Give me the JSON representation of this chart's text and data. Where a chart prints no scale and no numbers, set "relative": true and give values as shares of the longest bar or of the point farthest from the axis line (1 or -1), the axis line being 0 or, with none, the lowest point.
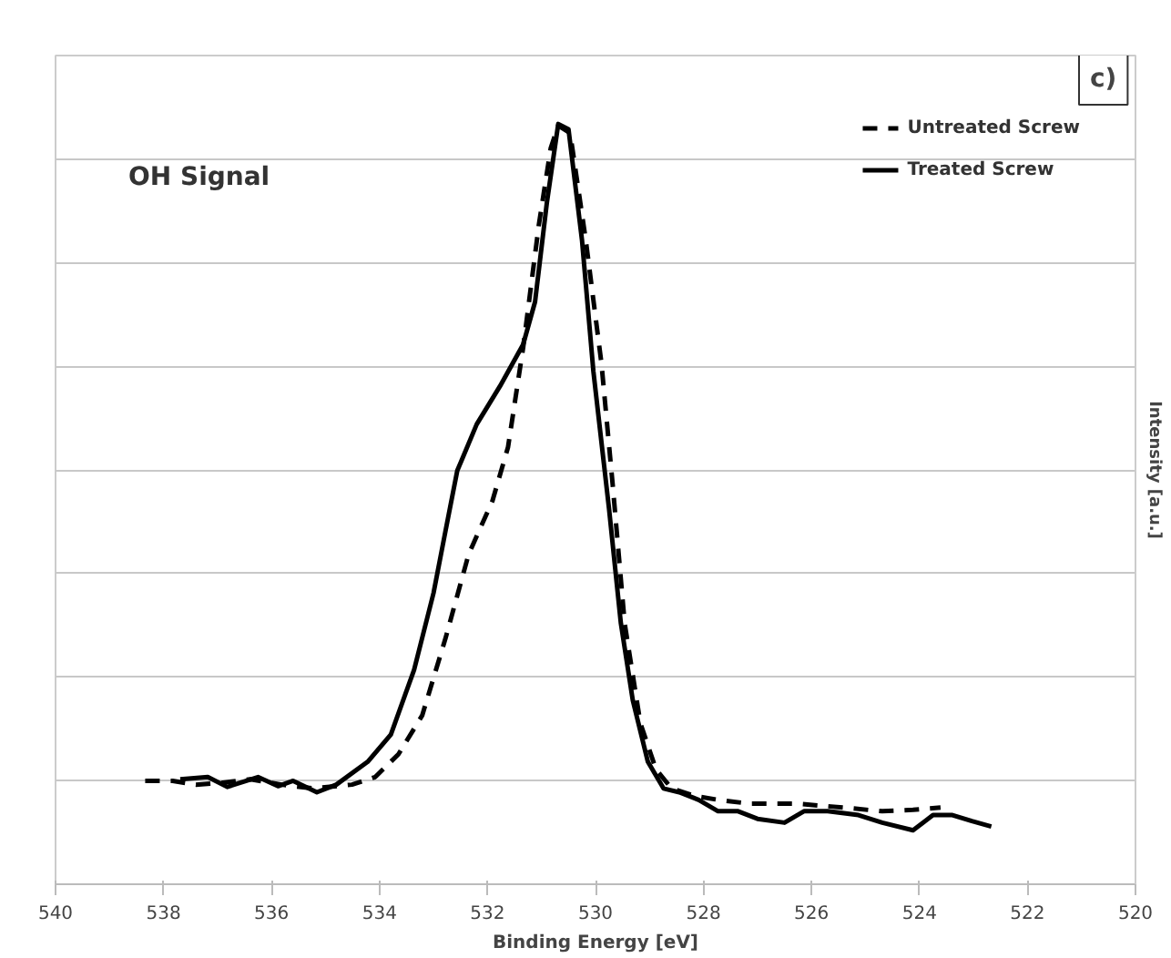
{
  "chart_data": {
    "type": "line",
    "relative": true,
    "xlabel": "Binding Energy [eV]",
    "ylabel": "Intensity [a.u.]",
    "xlim": [
      540,
      520
    ],
    "xticks": [
      540,
      538,
      536,
      534,
      532,
      530,
      528,
      526,
      524,
      522,
      520
    ],
    "grid": "y",
    "legend": "top right",
    "annotations": [
      "OH Signal",
      "c)"
    ],
    "series": [
      {
        "name": "Untreated Screw",
        "color": "#000000",
        "line_style": "dashed",
        "x": [
          538.34,
          537.83,
          537.4,
          536.97,
          536.39,
          535.81,
          535.23,
          534.51,
          534.08,
          533.65,
          533.21,
          532.78,
          532.35,
          531.91,
          531.62,
          531.34,
          531.05,
          530.83,
          530.69,
          530.47,
          530.18,
          529.89,
          529.68,
          529.46,
          529.17,
          528.88,
          528.59,
          528.16,
          527.73,
          527.15,
          526.28,
          525.42,
          524.69,
          524.12,
          523.61
        ],
        "values": [
          0.136,
          0.136,
          0.131,
          0.133,
          0.138,
          0.131,
          0.126,
          0.131,
          0.141,
          0.171,
          0.222,
          0.323,
          0.434,
          0.504,
          0.575,
          0.706,
          0.867,
          0.968,
          0.998,
          0.988,
          0.847,
          0.685,
          0.524,
          0.343,
          0.212,
          0.151,
          0.126,
          0.116,
          0.111,
          0.106,
          0.106,
          0.101,
          0.096,
          0.098,
          0.101
        ]
      },
      {
        "name": "Treated Screw",
        "color": "#000000",
        "line_style": "solid",
        "x": [
          537.69,
          537.18,
          536.82,
          536.25,
          535.88,
          535.6,
          535.16,
          534.8,
          534.22,
          533.79,
          533.36,
          533.0,
          532.78,
          532.56,
          532.2,
          531.77,
          531.34,
          531.12,
          530.9,
          530.69,
          530.5,
          530.25,
          530.04,
          529.75,
          529.53,
          529.31,
          529.03,
          528.74,
          528.45,
          528.09,
          527.73,
          527.36,
          527.0,
          526.5,
          526.14,
          525.7,
          525.13,
          524.69,
          524.12,
          523.75,
          523.39,
          523.03,
          522.67
        ],
        "values": [
          0.138,
          0.141,
          0.128,
          0.141,
          0.129,
          0.136,
          0.121,
          0.131,
          0.161,
          0.197,
          0.282,
          0.383,
          0.464,
          0.544,
          0.605,
          0.655,
          0.71,
          0.766,
          0.897,
          1.0,
          0.993,
          0.847,
          0.675,
          0.494,
          0.343,
          0.242,
          0.161,
          0.126,
          0.121,
          0.111,
          0.096,
          0.096,
          0.086,
          0.081,
          0.096,
          0.096,
          0.091,
          0.081,
          0.071,
          0.091,
          0.091,
          0.083,
          0.076
        ]
      }
    ]
  }
}
